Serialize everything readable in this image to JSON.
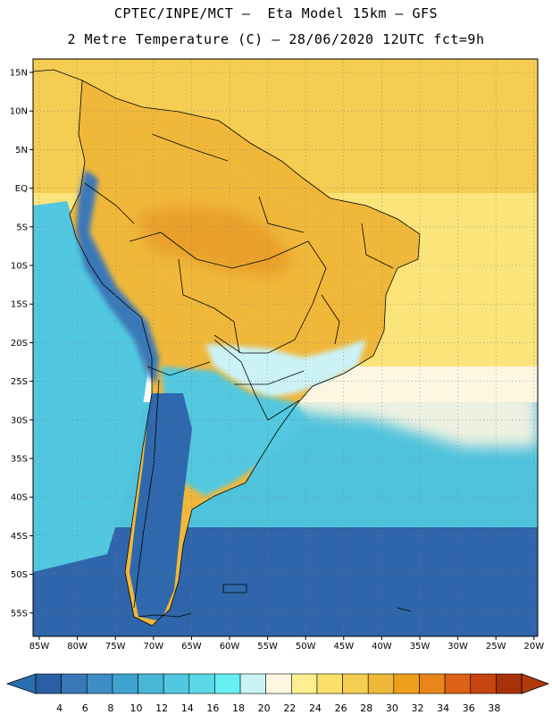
{
  "header": {
    "line1": "CPTEC/INPE/MCT –  Eta Model 15km – GFS",
    "line2": "2 Metre Temperature (C) – 28/06/2020 12UTC fct=9h"
  },
  "axes": {
    "lat_labels": [
      "15N",
      "10N",
      "5N",
      "EQ",
      "5S",
      "10S",
      "15S",
      "20S",
      "25S",
      "30S",
      "35S",
      "40S",
      "45S",
      "50S",
      "55S"
    ],
    "lon_labels": [
      "85W",
      "80W",
      "75W",
      "70W",
      "65W",
      "60W",
      "55W",
      "50W",
      "45W",
      "40W",
      "35W",
      "30W",
      "25W",
      "20W"
    ]
  },
  "colorbar": {
    "labels": [
      "4",
      "6",
      "8",
      "10",
      "12",
      "14",
      "16",
      "18",
      "20",
      "22",
      "24",
      "26",
      "28",
      "30",
      "32",
      "34",
      "36",
      "38"
    ],
    "colors": [
      "#2a5fa3",
      "#3a78b8",
      "#3f8dc6",
      "#3fa3cf",
      "#48b7d8",
      "#52c8e0",
      "#5ad8e8",
      "#66f0f4",
      "#cbf3f7",
      "#fff6e2",
      "#fdef90",
      "#fbe06a",
      "#f5ce50",
      "#f0b83a",
      "#eea01a",
      "#e8861a",
      "#dd6215",
      "#c74310",
      "#a83208"
    ],
    "low_color": "#2a6fb0",
    "high_color": "#b13a0a"
  },
  "map": {
    "ocean_colors": {
      "tropical_atlantic": "#f5cd52",
      "central_atlantic": "#fbe47a",
      "subtropical_band": "#fff6e2",
      "south_atlantic": "#4fc3dc",
      "southern_ocean": "#2f66ab",
      "pacific": "#52c8e0"
    },
    "land_colors": {
      "hot": "#e9a02a",
      "warm": "#f0b83a",
      "mild": "#cbf3f7",
      "cool": "#52c8e0",
      "cold": "#2f68ad",
      "andes": "#3a78b8"
    }
  }
}
